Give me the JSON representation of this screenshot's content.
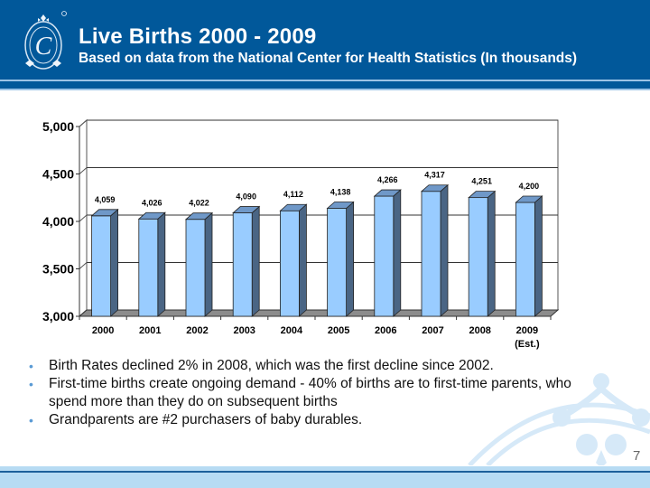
{
  "header": {
    "title": "Live Births 2000 - 2009",
    "subtitle": "Based on data from the National Center for Health Statistics (In thousands)",
    "logo": "crown-crafts-logo"
  },
  "colors": {
    "header_bg": "#01589a",
    "bar_front": "#99ccff",
    "bar_side": "#4a6584",
    "bar_top": "#6f98c8",
    "footer_bg": "#b7dbf3",
    "watermark": "#d6e9f8"
  },
  "chart_data": {
    "type": "bar",
    "style": "3d-column",
    "title": "",
    "xlabel": "",
    "ylabel": "",
    "categories": [
      "2000",
      "2001",
      "2002",
      "2003",
      "2004",
      "2005",
      "2006",
      "2007",
      "2008",
      "2009\n(Est.)"
    ],
    "category_labels": [
      [
        "2000"
      ],
      [
        "2001"
      ],
      [
        "2002"
      ],
      [
        "2003"
      ],
      [
        "2004"
      ],
      [
        "2005"
      ],
      [
        "2006"
      ],
      [
        "2007"
      ],
      [
        "2008"
      ],
      [
        "2009",
        "(Est.)"
      ]
    ],
    "values": [
      4059,
      4026,
      4022,
      4090,
      4112,
      4138,
      4266,
      4317,
      4251,
      4200
    ],
    "data_labels": [
      "4,059",
      "4,026",
      "4,022",
      "4,090",
      "4,112",
      "4,138",
      "4,266",
      "4,317",
      "4,251",
      "4,200"
    ],
    "ylim": [
      3000,
      5000
    ],
    "yticks": [
      3000,
      3500,
      4000,
      4500,
      5000
    ],
    "ytick_labels": [
      "3,000",
      "3,500",
      "4,000",
      "4,500",
      "5,000"
    ],
    "grid": true,
    "legend": "none"
  },
  "bullets": [
    "Birth Rates declined 2% in 2008, which was the first decline since 2002.",
    "First-time births create ongoing demand - 40% of births are to first-time parents, who spend more than they do on subsequent births",
    "Grandparents are #2 purchasers of baby durables."
  ],
  "page_number": "7"
}
